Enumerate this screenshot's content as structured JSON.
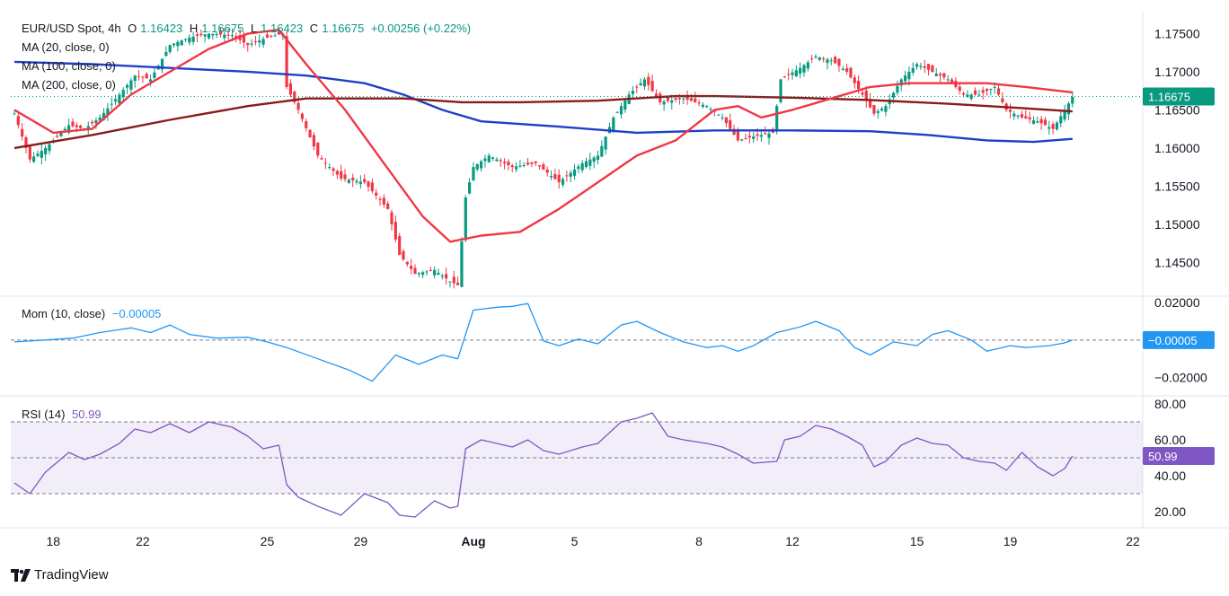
{
  "header": {
    "symbol": "EUR/USD Spot, 4h",
    "o_label": "O",
    "o": "1.16423",
    "h_label": "H",
    "h": "1.16675",
    "l_label": "L",
    "l": "1.16423",
    "c_label": "C",
    "c": "1.16675",
    "change": "+0.00256 (+0.22%)"
  },
  "indicators": {
    "ma20": "MA (20, close, 0)",
    "ma100": "MA (100, close, 0)",
    "ma200": "MA (200, close, 0)",
    "mom_label": "Mom (10, close)",
    "mom_value": "−0.00005",
    "rsi_label": "RSI (14)",
    "rsi_value": "50.99"
  },
  "brand": "TradingView",
  "colors": {
    "up": "#089981",
    "down": "#f23645",
    "ma20": "#f23645",
    "ma100": "#1e40c8",
    "ma200": "#8b1a1a",
    "mom": "#2196f3",
    "rsi": "#7e57c2",
    "price_tag": "#089981"
  },
  "chart_data": [
    {
      "type": "candlestick",
      "title": "EUR/USD Spot, 4h",
      "x_ticks": [
        "18",
        "22",
        "25",
        "29",
        "Aug",
        "5",
        "8",
        "12",
        "15",
        "19",
        "22"
      ],
      "y_ticks": [
        "1.17500",
        "1.17000",
        "1.16500",
        "1.16000",
        "1.15500",
        "1.15000",
        "1.14500"
      ],
      "ylim": [
        1.1415,
        1.178
      ],
      "last_price": "1.16675",
      "close_path": [
        [
          0,
          1.1645
        ],
        [
          4,
          1.1585
        ],
        [
          8,
          1.16
        ],
        [
          14,
          1.163
        ],
        [
          18,
          1.1625
        ],
        [
          22,
          1.164
        ],
        [
          27,
          1.167
        ],
        [
          31,
          1.1695
        ],
        [
          35,
          1.169
        ],
        [
          40,
          1.1735
        ],
        [
          45,
          1.1745
        ],
        [
          50,
          1.175
        ],
        [
          56,
          1.1748
        ],
        [
          60,
          1.1735
        ],
        [
          65,
          1.1745
        ],
        [
          69,
          1.175
        ],
        [
          70,
          1.168
        ],
        [
          73,
          1.165
        ],
        [
          78,
          1.159
        ],
        [
          84,
          1.156
        ],
        [
          90,
          1.1555
        ],
        [
          96,
          1.152
        ],
        [
          99,
          1.146
        ],
        [
          103,
          1.1435
        ],
        [
          108,
          1.144
        ],
        [
          112,
          1.1425
        ],
        [
          114,
          1.142
        ],
        [
          116,
          1.1535
        ],
        [
          118,
          1.1575
        ],
        [
          122,
          1.159
        ],
        [
          128,
          1.1575
        ],
        [
          134,
          1.158
        ],
        [
          140,
          1.1555
        ],
        [
          146,
          1.158
        ],
        [
          150,
          1.159
        ],
        [
          154,
          1.164
        ],
        [
          158,
          1.167
        ],
        [
          162,
          1.169
        ],
        [
          166,
          1.166
        ],
        [
          172,
          1.1665
        ],
        [
          178,
          1.1655
        ],
        [
          182,
          1.164
        ],
        [
          186,
          1.161
        ],
        [
          190,
          1.1615
        ],
        [
          195,
          1.162
        ],
        [
          197,
          1.169
        ],
        [
          202,
          1.1705
        ],
        [
          206,
          1.172
        ],
        [
          210,
          1.1715
        ],
        [
          214,
          1.17
        ],
        [
          218,
          1.167
        ],
        [
          221,
          1.1645
        ],
        [
          224,
          1.1655
        ],
        [
          228,
          1.169
        ],
        [
          232,
          1.171
        ],
        [
          236,
          1.17
        ],
        [
          240,
          1.169
        ],
        [
          244,
          1.167
        ],
        [
          248,
          1.167
        ],
        [
          252,
          1.168
        ],
        [
          255,
          1.165
        ],
        [
          259,
          1.164
        ],
        [
          263,
          1.1635
        ],
        [
          267,
          1.1625
        ],
        [
          270,
          1.165
        ],
        [
          272,
          1.1667
        ]
      ],
      "ma20": [
        [
          0,
          1.165
        ],
        [
          10,
          1.162
        ],
        [
          20,
          1.1625
        ],
        [
          30,
          1.167
        ],
        [
          40,
          1.17
        ],
        [
          50,
          1.173
        ],
        [
          60,
          1.175
        ],
        [
          68,
          1.1755
        ],
        [
          75,
          1.171
        ],
        [
          85,
          1.165
        ],
        [
          95,
          1.158
        ],
        [
          105,
          1.151
        ],
        [
          112,
          1.1477
        ],
        [
          120,
          1.1485
        ],
        [
          130,
          1.149
        ],
        [
          140,
          1.152
        ],
        [
          150,
          1.1555
        ],
        [
          160,
          1.159
        ],
        [
          170,
          1.161
        ],
        [
          180,
          1.165
        ],
        [
          186,
          1.1655
        ],
        [
          192,
          1.164
        ],
        [
          200,
          1.165
        ],
        [
          210,
          1.1665
        ],
        [
          220,
          1.168
        ],
        [
          230,
          1.1685
        ],
        [
          240,
          1.1685
        ],
        [
          250,
          1.1685
        ],
        [
          260,
          1.168
        ],
        [
          272,
          1.1673
        ]
      ],
      "ma100": [
        [
          0,
          1.1713
        ],
        [
          20,
          1.171
        ],
        [
          40,
          1.1705
        ],
        [
          60,
          1.17
        ],
        [
          75,
          1.1695
        ],
        [
          90,
          1.1685
        ],
        [
          100,
          1.167
        ],
        [
          110,
          1.165
        ],
        [
          120,
          1.1635
        ],
        [
          140,
          1.1628
        ],
        [
          160,
          1.162
        ],
        [
          180,
          1.1623
        ],
        [
          200,
          1.1623
        ],
        [
          220,
          1.1622
        ],
        [
          235,
          1.1617
        ],
        [
          250,
          1.161
        ],
        [
          262,
          1.1608
        ],
        [
          272,
          1.1612
        ]
      ],
      "ma200": [
        [
          0,
          1.16
        ],
        [
          20,
          1.1617
        ],
        [
          40,
          1.1637
        ],
        [
          60,
          1.1655
        ],
        [
          75,
          1.1665
        ],
        [
          100,
          1.1665
        ],
        [
          115,
          1.166
        ],
        [
          130,
          1.166
        ],
        [
          150,
          1.1662
        ],
        [
          170,
          1.1668
        ],
        [
          180,
          1.1668
        ],
        [
          200,
          1.1666
        ],
        [
          220,
          1.1663
        ],
        [
          240,
          1.1658
        ],
        [
          260,
          1.1652
        ],
        [
          272,
          1.1648
        ]
      ]
    },
    {
      "type": "line",
      "title": "Mom (10, close)",
      "y_ticks": [
        "0.02000",
        "−0.02000"
      ],
      "ylim": [
        -0.0255,
        0.0215
      ],
      "last_value": "−0.00005",
      "values": [
        [
          0,
          -0.001
        ],
        [
          8,
          0.0
        ],
        [
          15,
          0.001
        ],
        [
          22,
          0.004
        ],
        [
          30,
          0.0065
        ],
        [
          35,
          0.004
        ],
        [
          40,
          0.008
        ],
        [
          45,
          0.003
        ],
        [
          52,
          0.001
        ],
        [
          60,
          0.0015
        ],
        [
          65,
          -0.001
        ],
        [
          70,
          -0.004
        ],
        [
          78,
          -0.01
        ],
        [
          86,
          -0.016
        ],
        [
          92,
          -0.022
        ],
        [
          98,
          -0.008
        ],
        [
          104,
          -0.013
        ],
        [
          110,
          -0.008
        ],
        [
          114,
          -0.01
        ],
        [
          118,
          0.016
        ],
        [
          124,
          0.0175
        ],
        [
          128,
          0.018
        ],
        [
          132,
          0.0195
        ],
        [
          136,
          -0.0005
        ],
        [
          140,
          -0.003
        ],
        [
          145,
          0.0005
        ],
        [
          150,
          -0.002
        ],
        [
          156,
          0.008
        ],
        [
          160,
          0.01
        ],
        [
          166,
          0.004
        ],
        [
          172,
          -0.001
        ],
        [
          178,
          -0.004
        ],
        [
          182,
          -0.003
        ],
        [
          186,
          -0.006
        ],
        [
          190,
          -0.003
        ],
        [
          196,
          0.004
        ],
        [
          202,
          0.007
        ],
        [
          206,
          0.01
        ],
        [
          212,
          0.005
        ],
        [
          216,
          -0.004
        ],
        [
          220,
          -0.008
        ],
        [
          226,
          -0.001
        ],
        [
          232,
          -0.003
        ],
        [
          236,
          0.003
        ],
        [
          240,
          0.005
        ],
        [
          246,
          0.0
        ],
        [
          250,
          -0.006
        ],
        [
          256,
          -0.003
        ],
        [
          260,
          -0.004
        ],
        [
          266,
          -0.003
        ],
        [
          270,
          -0.0015
        ],
        [
          272,
          -5e-05
        ]
      ]
    },
    {
      "type": "line",
      "title": "RSI (14)",
      "y_ticks": [
        "80.00",
        "60.00",
        "40.00",
        "20.00"
      ],
      "ylim": [
        16,
        82
      ],
      "band": [
        30,
        70
      ],
      "last_value": "50.99",
      "values": [
        [
          0,
          36
        ],
        [
          4,
          30
        ],
        [
          8,
          42
        ],
        [
          14,
          53
        ],
        [
          18,
          49
        ],
        [
          22,
          52
        ],
        [
          27,
          58
        ],
        [
          31,
          66
        ],
        [
          35,
          64
        ],
        [
          40,
          69
        ],
        [
          45,
          64
        ],
        [
          50,
          70
        ],
        [
          56,
          67
        ],
        [
          60,
          62
        ],
        [
          64,
          55
        ],
        [
          68,
          57
        ],
        [
          70,
          35
        ],
        [
          73,
          28
        ],
        [
          78,
          23
        ],
        [
          84,
          18
        ],
        [
          90,
          30
        ],
        [
          96,
          25
        ],
        [
          99,
          18
        ],
        [
          103,
          17
        ],
        [
          108,
          26
        ],
        [
          112,
          22
        ],
        [
          114,
          23
        ],
        [
          116,
          55
        ],
        [
          120,
          60
        ],
        [
          124,
          58
        ],
        [
          128,
          56
        ],
        [
          132,
          60
        ],
        [
          136,
          54
        ],
        [
          140,
          52
        ],
        [
          146,
          56
        ],
        [
          150,
          58
        ],
        [
          156,
          70
        ],
        [
          160,
          72
        ],
        [
          164,
          75
        ],
        [
          168,
          62
        ],
        [
          172,
          60
        ],
        [
          178,
          58
        ],
        [
          182,
          56
        ],
        [
          186,
          52
        ],
        [
          190,
          47
        ],
        [
          196,
          48
        ],
        [
          198,
          60
        ],
        [
          202,
          62
        ],
        [
          206,
          68
        ],
        [
          210,
          66
        ],
        [
          214,
          62
        ],
        [
          218,
          57
        ],
        [
          221,
          45
        ],
        [
          224,
          48
        ],
        [
          228,
          57
        ],
        [
          232,
          61
        ],
        [
          236,
          58
        ],
        [
          240,
          57
        ],
        [
          244,
          50
        ],
        [
          248,
          48
        ],
        [
          252,
          47
        ],
        [
          255,
          43
        ],
        [
          259,
          53
        ],
        [
          263,
          45
        ],
        [
          267,
          40
        ],
        [
          270,
          44
        ],
        [
          272,
          50.99
        ]
      ]
    }
  ]
}
